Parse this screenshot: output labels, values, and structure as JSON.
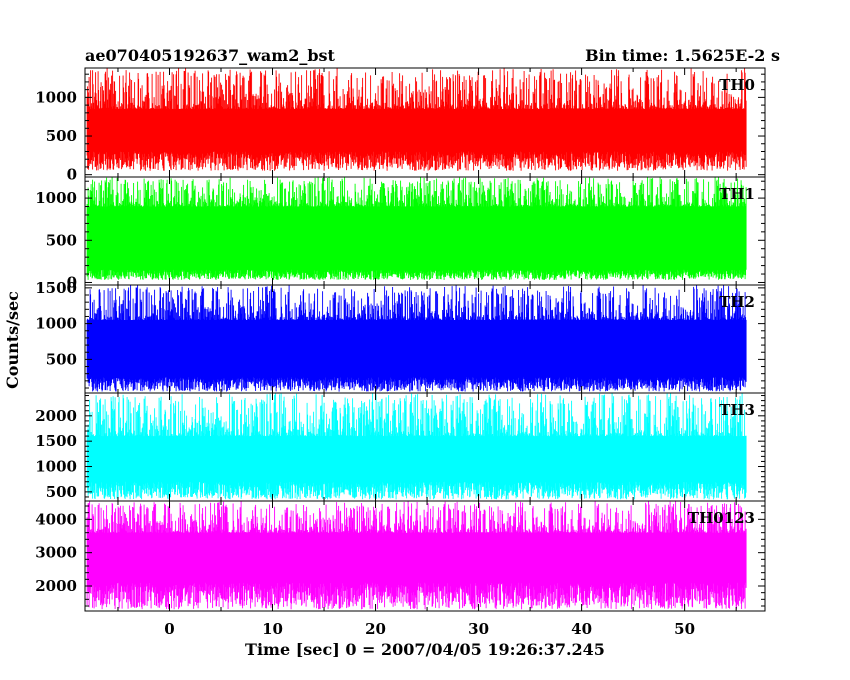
{
  "chart_data": {
    "type": "line",
    "title_left": "ae070405192637_wam2_bst",
    "title_right": "Bin time: 1.5625E-2 s",
    "xlabel": "Time [sec] 0 = 2007/04/05 19:26:37.245",
    "ylabel": "Counts/sec",
    "xlim": [
      -8.2,
      57.8
    ],
    "x_ticks": [
      "0",
      "10",
      "20",
      "30",
      "40",
      "50"
    ],
    "x_tick_values": [
      0,
      10,
      20,
      30,
      40,
      50
    ],
    "data_x_range": [
      -8,
      56
    ],
    "bin_time": 0.015625,
    "panels": [
      {
        "name": "TH0",
        "color": "#ff0000",
        "ylim": [
          -30,
          1380
        ],
        "y_ticks": [
          "0",
          "500",
          "1000"
        ],
        "y_tick_values": [
          0,
          500,
          1000
        ],
        "signal": {
          "lower_envelope": 300,
          "upper_envelope": 850,
          "min": 50,
          "max": 1380
        }
      },
      {
        "name": "TH1",
        "color": "#00ff00",
        "ylim": [
          -30,
          1250
        ],
        "y_ticks": [
          "0",
          "500",
          "1000"
        ],
        "y_tick_values": [
          0,
          500,
          1000
        ],
        "signal": {
          "lower_envelope": 150,
          "upper_envelope": 900,
          "min": 30,
          "max": 1250
        }
      },
      {
        "name": "TH2",
        "color": "#0000ff",
        "ylim": [
          30,
          1540
        ],
        "y_ticks": [
          "500",
          "1000",
          "1500"
        ],
        "y_tick_values": [
          500,
          1000,
          1500
        ],
        "signal": {
          "lower_envelope": 250,
          "upper_envelope": 1050,
          "min": 50,
          "max": 1540
        }
      },
      {
        "name": "TH3",
        "color": "#00ffff",
        "ylim": [
          320,
          2450
        ],
        "y_ticks": [
          "500",
          "1000",
          "1500",
          "2000"
        ],
        "y_tick_values": [
          500,
          1000,
          1500,
          2000
        ],
        "signal": {
          "lower_envelope": 700,
          "upper_envelope": 1600,
          "min": 350,
          "max": 2450
        }
      },
      {
        "name": "TH0123",
        "color": "#ff00ff",
        "ylim": [
          1250,
          4550
        ],
        "y_ticks": [
          "2000",
          "3000",
          "4000"
        ],
        "y_tick_values": [
          2000,
          3000,
          4000
        ],
        "signal": {
          "lower_envelope": 2100,
          "upper_envelope": 3600,
          "min": 1300,
          "max": 4550
        }
      }
    ]
  }
}
